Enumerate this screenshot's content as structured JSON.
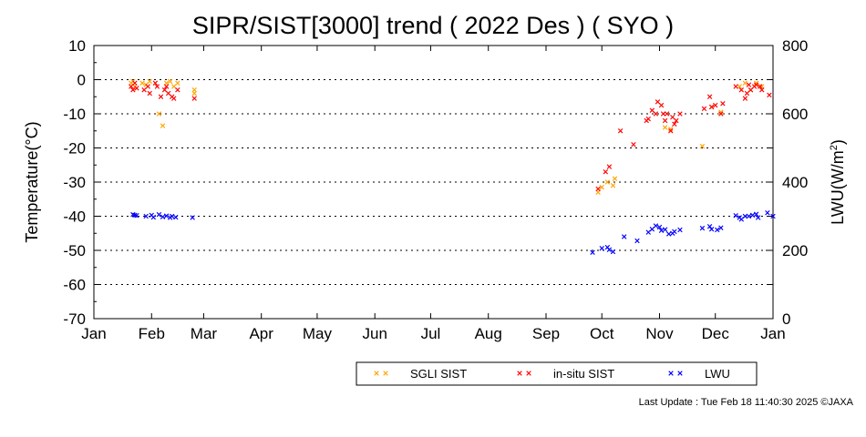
{
  "chart_data": {
    "type": "scatter",
    "title": "SIPR/SIST[3000] trend ( 2022 Des ) ( SYO )",
    "ylabel": "Temperature(°C)",
    "y2label_main": "LWU(W/m",
    "y2label_sup": "2",
    "y2label_end": ")",
    "ylim": [
      -70,
      10
    ],
    "y2lim": [
      0,
      800
    ],
    "yticks": [
      "10",
      "0",
      "-10",
      "-20",
      "-30",
      "-40",
      "-50",
      "-60",
      "-70"
    ],
    "y2ticks": [
      "800",
      "600",
      "400",
      "200",
      "0"
    ],
    "xmin": 0,
    "xmax": 365,
    "xticks": [
      {
        "label": "Jan",
        "day": 0
      },
      {
        "label": "Feb",
        "day": 31
      },
      {
        "label": "Mar",
        "day": 59
      },
      {
        "label": "Apr",
        "day": 90
      },
      {
        "label": "May",
        "day": 120
      },
      {
        "label": "Jun",
        "day": 151
      },
      {
        "label": "Jul",
        "day": 181
      },
      {
        "label": "Aug",
        "day": 212
      },
      {
        "label": "Sep",
        "day": 243
      },
      {
        "label": "Oct",
        "day": 273
      },
      {
        "label": "Nov",
        "day": 304
      },
      {
        "label": "Dec",
        "day": 334
      },
      {
        "label": "Jan",
        "day": 365
      }
    ],
    "grid": "horizontal dotted",
    "legend_position": "bottom-right",
    "series": [
      {
        "name": "SGLI SIST",
        "color": "#ffa500",
        "axis": "left",
        "points": [
          [
            20,
            -1
          ],
          [
            21,
            -0.5
          ],
          [
            22,
            -2
          ],
          [
            26,
            -1
          ],
          [
            28,
            -1.5
          ],
          [
            30,
            -0.5
          ],
          [
            35,
            -10
          ],
          [
            37,
            -13.5
          ],
          [
            39,
            -1
          ],
          [
            41,
            -0.5
          ],
          [
            43,
            -2
          ],
          [
            45,
            -1
          ],
          [
            54,
            -3
          ],
          [
            54,
            -4
          ],
          [
            271,
            -33
          ],
          [
            273,
            -31.5
          ],
          [
            276,
            -30
          ],
          [
            279,
            -31
          ],
          [
            280,
            -29
          ],
          [
            307,
            -14
          ],
          [
            310,
            -14.5
          ],
          [
            327,
            -19.5
          ],
          [
            332,
            -8
          ],
          [
            337,
            -9.5
          ],
          [
            347,
            -2
          ],
          [
            350,
            -1
          ],
          [
            353,
            -3
          ],
          [
            356,
            -1
          ],
          [
            359,
            -2
          ]
        ]
      },
      {
        "name": "in-situ SIST",
        "color": "#ff0000",
        "axis": "left",
        "points": [
          [
            20,
            -2
          ],
          [
            21,
            -3
          ],
          [
            22,
            -1
          ],
          [
            23,
            -2.5
          ],
          [
            27,
            -3
          ],
          [
            29,
            -2
          ],
          [
            30,
            -4
          ],
          [
            33,
            -1
          ],
          [
            34,
            -2
          ],
          [
            36,
            -5
          ],
          [
            38,
            -3
          ],
          [
            39,
            -2
          ],
          [
            40,
            -4
          ],
          [
            42,
            -5
          ],
          [
            43,
            -5.5
          ],
          [
            45,
            -3
          ],
          [
            54,
            -5.5
          ],
          [
            271,
            -32
          ],
          [
            275,
            -27
          ],
          [
            277,
            -25.5
          ],
          [
            283,
            -15
          ],
          [
            290,
            -19
          ],
          [
            297,
            -12
          ],
          [
            298,
            -11.5
          ],
          [
            300,
            -9
          ],
          [
            302,
            -10
          ],
          [
            303,
            -6.5
          ],
          [
            305,
            -7.5
          ],
          [
            306,
            -10
          ],
          [
            307,
            -12
          ],
          [
            308,
            -10
          ],
          [
            310,
            -15
          ],
          [
            311,
            -11
          ],
          [
            312,
            -13
          ],
          [
            313,
            -12
          ],
          [
            315,
            -10
          ],
          [
            328,
            -8.5
          ],
          [
            331,
            -5
          ],
          [
            332,
            -8
          ],
          [
            334,
            -7.5
          ],
          [
            337,
            -10
          ],
          [
            338,
            -7
          ],
          [
            345,
            -2
          ],
          [
            348,
            -3
          ],
          [
            350,
            -5.5
          ],
          [
            351,
            -4
          ],
          [
            352,
            -1.5
          ],
          [
            353,
            -3
          ],
          [
            355,
            -2
          ],
          [
            356,
            -1.5
          ],
          [
            358,
            -2
          ],
          [
            359,
            -3
          ],
          [
            363,
            -4.5
          ]
        ]
      },
      {
        "name": "LWU",
        "color": "#0000ff",
        "axis": "right",
        "points": [
          [
            21,
            305
          ],
          [
            22,
            303
          ],
          [
            23,
            302
          ],
          [
            28,
            300
          ],
          [
            31,
            303
          ],
          [
            32,
            297
          ],
          [
            35,
            305
          ],
          [
            37,
            298
          ],
          [
            39,
            301
          ],
          [
            41,
            296
          ],
          [
            42,
            300
          ],
          [
            44,
            297
          ],
          [
            53,
            296
          ],
          [
            268,
            194
          ],
          [
            273,
            206
          ],
          [
            276,
            209
          ],
          [
            277,
            202
          ],
          [
            279,
            196
          ],
          [
            285,
            240
          ],
          [
            292,
            228
          ],
          [
            298,
            253
          ],
          [
            300,
            262
          ],
          [
            302,
            272
          ],
          [
            304,
            268
          ],
          [
            305,
            258
          ],
          [
            307,
            261
          ],
          [
            309,
            248
          ],
          [
            311,
            250
          ],
          [
            312,
            255
          ],
          [
            315,
            260
          ],
          [
            327,
            265
          ],
          [
            331,
            270
          ],
          [
            332,
            262
          ],
          [
            335,
            260
          ],
          [
            337,
            266
          ],
          [
            345,
            302
          ],
          [
            347,
            296
          ],
          [
            348,
            291
          ],
          [
            350,
            300
          ],
          [
            352,
            300
          ],
          [
            354,
            303
          ],
          [
            356,
            306
          ],
          [
            357,
            296
          ],
          [
            362,
            310
          ],
          [
            365,
            300
          ]
        ]
      }
    ]
  },
  "footer": {
    "last_update": "Last Update : Tue Feb 18 11:40:30 2025  ©JAXA"
  }
}
